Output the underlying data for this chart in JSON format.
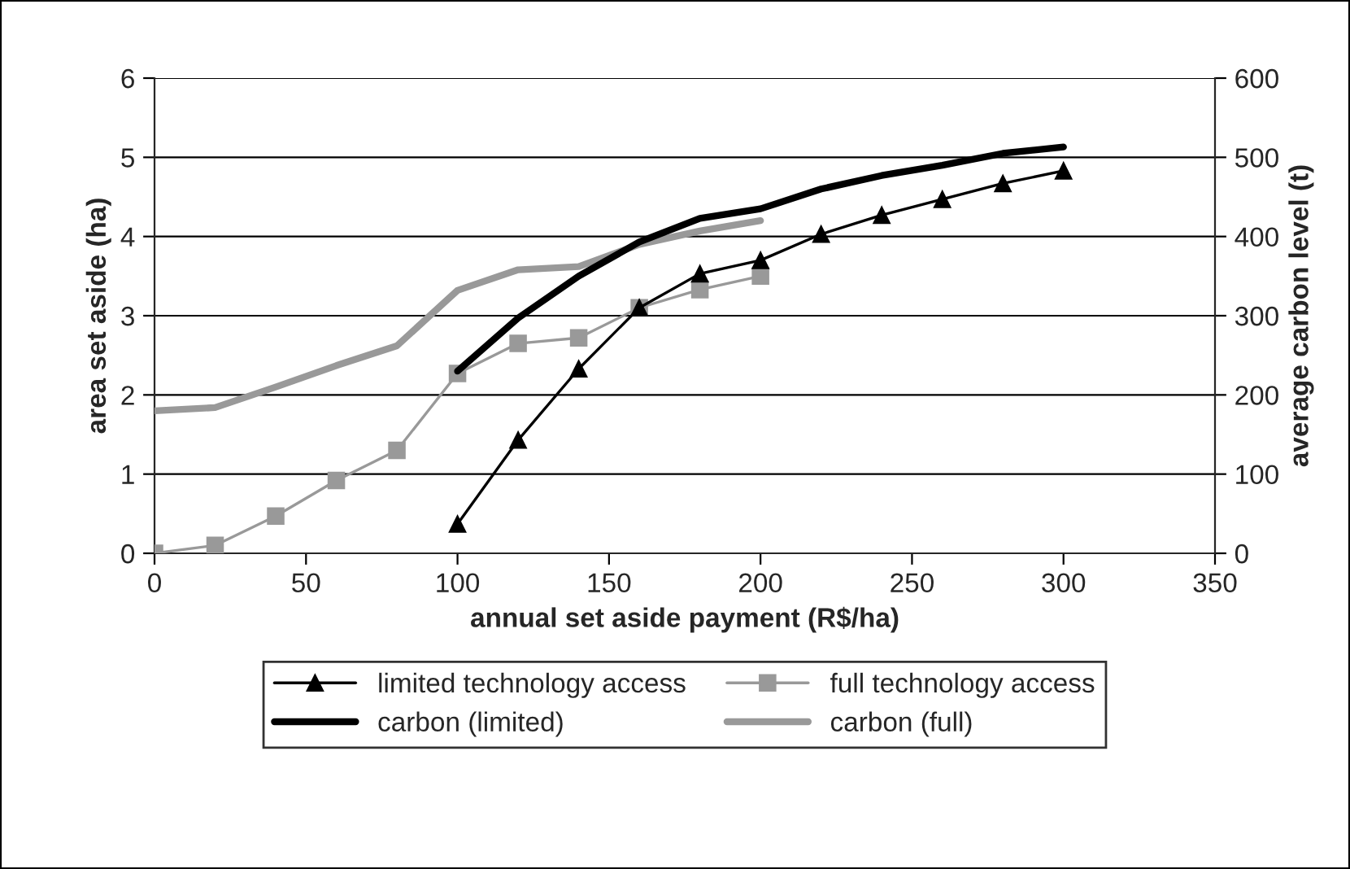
{
  "chart_data": {
    "type": "line",
    "xlabel": "annual set aside payment (R$/ha)",
    "ylabel": "area set aside (ha)",
    "y2label": "average carbon level (t)",
    "xlim": [
      0,
      350
    ],
    "xticks": [
      0,
      50,
      100,
      150,
      200,
      250,
      300,
      350
    ],
    "ylim": [
      0,
      6
    ],
    "yticks": [
      0,
      1,
      2,
      3,
      4,
      5,
      6
    ],
    "y2lim": [
      0,
      600
    ],
    "y2ticks": [
      0,
      100,
      200,
      300,
      400,
      500,
      600
    ],
    "grid": "y",
    "legend": "bottom",
    "series": [
      {
        "name": "limited technology access",
        "color": "#000000",
        "marker": "triangle",
        "x": [
          100,
          120,
          140,
          160,
          180,
          200,
          220,
          240,
          260,
          280,
          300
        ],
        "values": [
          0.37,
          1.43,
          2.33,
          3.1,
          3.53,
          3.7,
          4.03,
          4.27,
          4.47,
          4.67,
          4.83
        ]
      },
      {
        "name": "full technology access",
        "color": "#999999",
        "marker": "square",
        "x": [
          0,
          20,
          40,
          60,
          80,
          100,
          120,
          140,
          160,
          180,
          200
        ],
        "values": [
          0,
          0.1,
          0.47,
          0.92,
          1.3,
          2.27,
          2.65,
          2.72,
          3.1,
          3.33,
          3.5
        ]
      },
      {
        "name": "carbon (limited)",
        "color": "#000000",
        "marker": "none",
        "axis": "y2",
        "x": [
          100,
          120,
          140,
          160,
          180,
          200,
          220,
          240,
          260,
          280,
          300
        ],
        "values": [
          230,
          297,
          350,
          393,
          423,
          435,
          460,
          477,
          490,
          505,
          513
        ]
      },
      {
        "name": "carbon (full)",
        "color": "#999999",
        "marker": "none",
        "axis": "y2",
        "x": [
          0,
          20,
          40,
          60,
          80,
          100,
          120,
          140,
          160,
          180,
          200
        ],
        "values": [
          180,
          184,
          210,
          237,
          262,
          332,
          358,
          362,
          390,
          407,
          420
        ]
      }
    ]
  }
}
